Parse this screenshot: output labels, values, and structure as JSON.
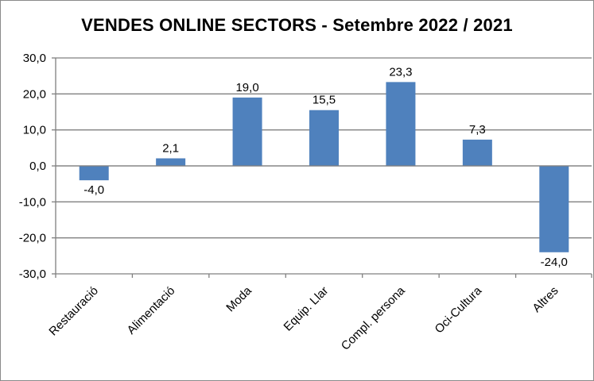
{
  "chart_data": {
    "type": "bar",
    "title": "VENDES ONLINE SECTORS - Setembre 2022 / 2021",
    "xlabel": "",
    "ylabel": "",
    "categories": [
      "Restauració",
      "Alimentació",
      "Moda",
      "Equip. Llar",
      "Compl. persona",
      "Oci-Cultura",
      "Altres"
    ],
    "values": [
      -4.0,
      2.1,
      19.0,
      15.5,
      23.3,
      7.3,
      -24.0
    ],
    "data_labels": [
      "-4,0",
      "2,1",
      "19,0",
      "15,5",
      "23,3",
      "7,3",
      "-24,0"
    ],
    "ylim": [
      -30,
      30
    ],
    "y_ticks": [
      30,
      20,
      10,
      0,
      -10,
      -20,
      -30
    ],
    "y_tick_labels": [
      "30,0",
      "20,0",
      "10,0",
      "0,0",
      "-10,0",
      "-20,0",
      "-30,0"
    ],
    "grid": true,
    "legend": "none",
    "colors": {
      "bar": "#4f81bd",
      "grid": "#808080",
      "axis": "#808080"
    }
  }
}
